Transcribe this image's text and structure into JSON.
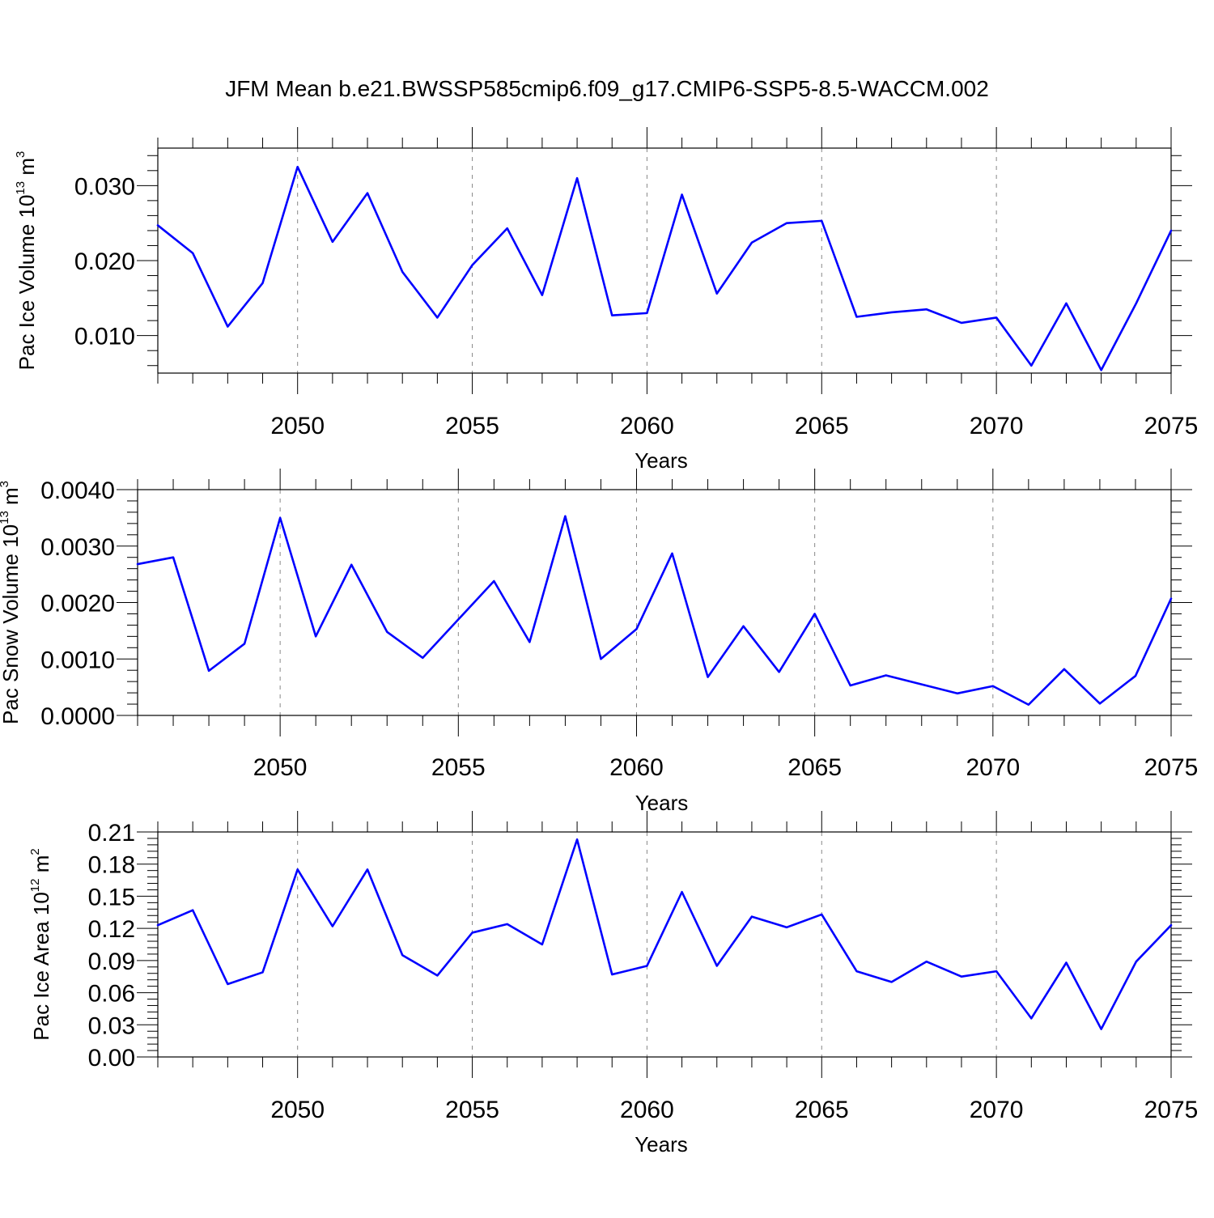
{
  "title": "JFM Mean b.e21.BWSSP585cmip6.f09_g17.CMIP6-SSP5-8.5-WACCM.002",
  "colors": {
    "line": "#0000ff",
    "axis": "#000000",
    "grid": "#888888"
  },
  "chart_data": [
    {
      "type": "line",
      "title": "",
      "xlabel": "Years",
      "ylabel": {
        "text": "Pac Ice Volume 10",
        "sup": "13",
        "unit": " m",
        "unit_sup": "3"
      },
      "xlim": [
        2046,
        2075
      ],
      "ylim": [
        0.005,
        0.035
      ],
      "x_ticks": [
        2050,
        2055,
        2060,
        2065,
        2070,
        2075
      ],
      "x_tick_labels": [
        "2050",
        "2055",
        "2060",
        "2065",
        "2070",
        "2075"
      ],
      "y_ticks": [
        0.01,
        0.02,
        0.03
      ],
      "y_tick_labels": [
        "0.010",
        "0.020",
        "0.030"
      ],
      "vertical_dashed_grid": [
        2050,
        2055,
        2060,
        2065,
        2070
      ],
      "x": [
        2046,
        2047,
        2048,
        2049,
        2050,
        2051,
        2052,
        2053,
        2054,
        2055,
        2056,
        2057,
        2058,
        2059,
        2060,
        2061,
        2062,
        2063,
        2064,
        2065,
        2066,
        2067,
        2068,
        2069,
        2070,
        2071,
        2072,
        2073,
        2074,
        2075
      ],
      "series": [
        {
          "values": [
            0.0247,
            0.021,
            0.0112,
            0.017,
            0.0325,
            0.0225,
            0.029,
            0.0185,
            0.0124,
            0.0194,
            0.0243,
            0.0154,
            0.031,
            0.0127,
            0.013,
            0.0288,
            0.0156,
            0.0224,
            0.025,
            0.0253,
            0.0125,
            0.0131,
            0.0135,
            0.0117,
            0.0124,
            0.006,
            0.0143,
            0.0054,
            0.0143,
            0.024
          ]
        }
      ]
    },
    {
      "type": "line",
      "title": "",
      "xlabel": "Years",
      "ylabel": {
        "text": "Pac Snow Volume 10",
        "sup": "13",
        "unit": " m",
        "unit_sup": "3"
      },
      "xlim": [
        2046,
        2075
      ],
      "ylim": [
        0.0,
        0.004
      ],
      "x_ticks": [
        2050,
        2055,
        2060,
        2065,
        2070,
        2075
      ],
      "x_tick_labels": [
        "2050",
        "2055",
        "2060",
        "2065",
        "2070",
        "2075"
      ],
      "y_ticks": [
        0.0,
        0.001,
        0.002,
        0.003,
        0.004
      ],
      "y_tick_labels": [
        "0.0000",
        "0.0010",
        "0.0020",
        "0.0030",
        "0.0040"
      ],
      "vertical_dashed_grid": [
        2050,
        2055,
        2060,
        2065,
        2070
      ],
      "x": [
        2046,
        2047,
        2048,
        2049,
        2050,
        2051,
        2052,
        2053,
        2054,
        2055,
        2056,
        2057,
        2058,
        2059,
        2060,
        2061,
        2062,
        2063,
        2064,
        2065,
        2066,
        2067,
        2068,
        2069,
        2070,
        2071,
        2072,
        2073,
        2074,
        2075
      ],
      "series": [
        {
          "values": [
            0.00268,
            0.0028,
            0.00079,
            0.00127,
            0.0035,
            0.0014,
            0.00267,
            0.00148,
            0.00102,
            0.0017,
            0.00238,
            0.0013,
            0.00353,
            0.001,
            0.00153,
            0.00287,
            0.00068,
            0.00158,
            0.00077,
            0.0018,
            0.00053,
            0.00071,
            0.00055,
            0.00039,
            0.00052,
            0.00019,
            0.00082,
            0.00021,
            0.0007,
            0.00207
          ]
        }
      ]
    },
    {
      "type": "line",
      "title": "",
      "xlabel": "Years",
      "ylabel": {
        "text": "Pac Ice Area 10",
        "sup": "12",
        "unit": " m",
        "unit_sup": "2"
      },
      "xlim": [
        2046,
        2075
      ],
      "ylim": [
        0.0,
        0.21
      ],
      "x_ticks": [
        2050,
        2055,
        2060,
        2065,
        2070,
        2075
      ],
      "x_tick_labels": [
        "2050",
        "2055",
        "2060",
        "2065",
        "2070",
        "2075"
      ],
      "y_ticks": [
        0.0,
        0.03,
        0.06,
        0.09,
        0.12,
        0.15,
        0.18,
        0.21
      ],
      "y_tick_labels": [
        "0.00",
        "0.03",
        "0.06",
        "0.09",
        "0.12",
        "0.15",
        "0.18",
        "0.21"
      ],
      "vertical_dashed_grid": [
        2050,
        2055,
        2060,
        2065,
        2070
      ],
      "x": [
        2046,
        2047,
        2048,
        2049,
        2050,
        2051,
        2052,
        2053,
        2054,
        2055,
        2056,
        2057,
        2058,
        2059,
        2060,
        2061,
        2062,
        2063,
        2064,
        2065,
        2066,
        2067,
        2068,
        2069,
        2070,
        2071,
        2072,
        2073,
        2074,
        2075
      ],
      "series": [
        {
          "values": [
            0.123,
            0.137,
            0.068,
            0.079,
            0.175,
            0.122,
            0.175,
            0.095,
            0.076,
            0.116,
            0.124,
            0.105,
            0.203,
            0.077,
            0.085,
            0.154,
            0.085,
            0.131,
            0.121,
            0.133,
            0.08,
            0.07,
            0.089,
            0.075,
            0.08,
            0.036,
            0.088,
            0.026,
            0.089,
            0.123
          ]
        }
      ]
    }
  ]
}
